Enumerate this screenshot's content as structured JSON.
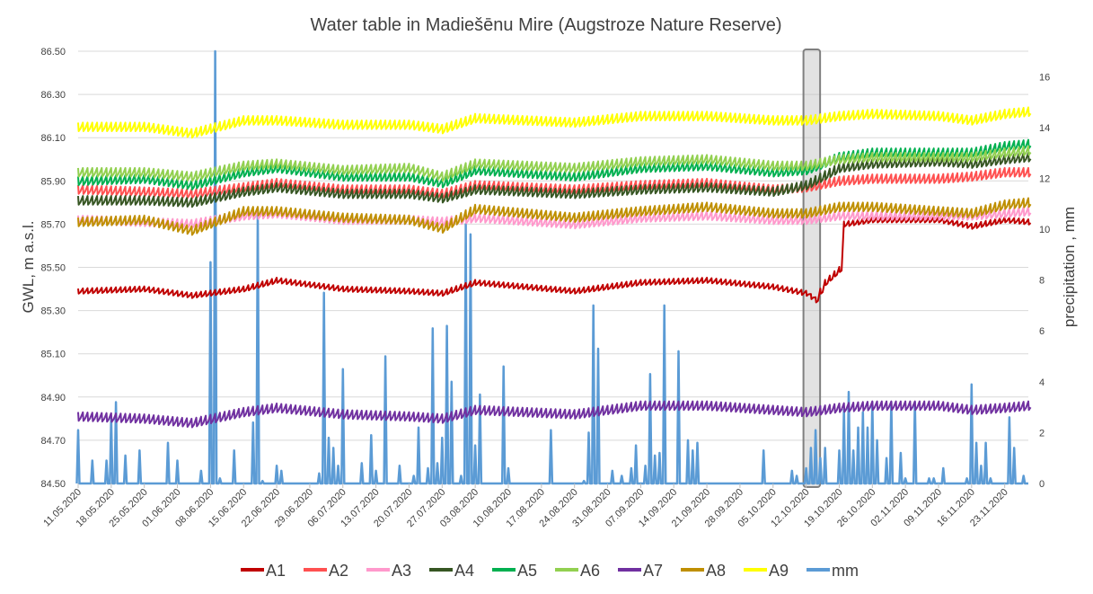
{
  "chart_data": {
    "type": "line",
    "title": "Water table in Madiešēnu Mire (Augstroze Nature Reserve)",
    "ylabel": "GWL, m a.s.l.",
    "y2label": "precipitation , mm",
    "ylim": [
      84.5,
      86.5
    ],
    "y2lim": [
      0,
      17
    ],
    "yticks": [
      "84.50",
      "84.70",
      "84.90",
      "85.10",
      "85.30",
      "85.50",
      "85.70",
      "85.90",
      "86.10",
      "86.30",
      "86.50"
    ],
    "y2ticks": [
      "0",
      "2",
      "4",
      "6",
      "8",
      "10",
      "12",
      "14",
      "16"
    ],
    "x_start": "2020-05-11",
    "x_end": "2020-11-28",
    "xticks": [
      "11.05.2020",
      "18.05.2020",
      "25.05.2020",
      "01.06.2020",
      "08.06.2020",
      "15.06.2020",
      "22.06.2020",
      "29.06.2020",
      "06.07.2020",
      "13.07.2020",
      "20.07.2020",
      "27.07.2020",
      "03.08.2020",
      "10.08.2020",
      "17.08.2020",
      "24.08.2020",
      "31.08.2020",
      "07.09.2020",
      "14.09.2020",
      "21.09.2020",
      "28.09.2020",
      "05.10.2020",
      "12.10.2020",
      "19.10.2020",
      "26.10.2020",
      "02.11.2020",
      "09.11.2020",
      "16.11.2020",
      "23.11.2020"
    ],
    "grid": true,
    "legend_position": "bottom",
    "highlight": {
      "start": "2020-10-12",
      "end": "2020-10-14"
    },
    "series": [
      {
        "name": "A1",
        "color": "#c00000",
        "x": [
          "2020-05-11",
          "2020-05-25",
          "2020-06-04",
          "2020-06-15",
          "2020-06-22",
          "2020-07-06",
          "2020-07-20",
          "2020-07-27",
          "2020-08-03",
          "2020-08-24",
          "2020-09-07",
          "2020-09-21",
          "2020-10-05",
          "2020-10-12",
          "2020-10-14",
          "2020-10-16",
          "2020-10-19",
          "2020-10-20",
          "2020-10-26",
          "2020-11-09",
          "2020-11-16",
          "2020-11-23",
          "2020-11-28"
        ],
        "values": [
          85.39,
          85.4,
          85.37,
          85.4,
          85.44,
          85.4,
          85.39,
          85.38,
          85.43,
          85.39,
          85.43,
          85.44,
          85.41,
          85.38,
          85.35,
          85.43,
          85.49,
          85.7,
          85.72,
          85.72,
          85.69,
          85.72,
          85.71
        ]
      },
      {
        "name": "A2",
        "color": "#ff5050",
        "x": [
          "2020-05-11",
          "2020-05-25",
          "2020-06-04",
          "2020-06-15",
          "2020-06-22",
          "2020-07-06",
          "2020-07-20",
          "2020-07-27",
          "2020-08-03",
          "2020-08-24",
          "2020-09-07",
          "2020-09-21",
          "2020-10-05",
          "2020-10-12",
          "2020-10-19",
          "2020-10-26",
          "2020-11-09",
          "2020-11-16",
          "2020-11-23",
          "2020-11-28"
        ],
        "values": [
          85.86,
          85.85,
          85.84,
          85.87,
          85.89,
          85.86,
          85.86,
          85.84,
          85.88,
          85.86,
          85.88,
          85.89,
          85.86,
          85.87,
          85.9,
          85.91,
          85.91,
          85.92,
          85.94,
          85.94
        ]
      },
      {
        "name": "A3",
        "color": "#ff99cc",
        "x": [
          "2020-05-11",
          "2020-05-25",
          "2020-06-04",
          "2020-06-15",
          "2020-06-22",
          "2020-07-06",
          "2020-07-20",
          "2020-07-27",
          "2020-08-03",
          "2020-08-24",
          "2020-09-07",
          "2020-09-21",
          "2020-10-05",
          "2020-10-12",
          "2020-10-19",
          "2020-10-26",
          "2020-11-09",
          "2020-11-16",
          "2020-11-23",
          "2020-11-28"
        ],
        "values": [
          85.72,
          85.71,
          85.7,
          85.74,
          85.75,
          85.72,
          85.72,
          85.71,
          85.73,
          85.7,
          85.73,
          85.74,
          85.72,
          85.72,
          85.74,
          85.74,
          85.74,
          85.74,
          85.75,
          85.76
        ]
      },
      {
        "name": "A4",
        "color": "#375623",
        "x": [
          "2020-05-11",
          "2020-05-25",
          "2020-06-04",
          "2020-06-15",
          "2020-06-22",
          "2020-07-06",
          "2020-07-20",
          "2020-07-27",
          "2020-08-03",
          "2020-08-24",
          "2020-09-07",
          "2020-09-21",
          "2020-10-05",
          "2020-10-12",
          "2020-10-19",
          "2020-10-26",
          "2020-11-09",
          "2020-11-16",
          "2020-11-23",
          "2020-11-28"
        ],
        "values": [
          85.81,
          85.81,
          85.8,
          85.85,
          85.87,
          85.84,
          85.84,
          85.82,
          85.86,
          85.84,
          85.86,
          85.87,
          85.85,
          85.88,
          85.96,
          85.98,
          85.99,
          85.98,
          86.0,
          86.01
        ]
      },
      {
        "name": "A5",
        "color": "#00b050",
        "x": [
          "2020-05-11",
          "2020-05-25",
          "2020-06-04",
          "2020-06-15",
          "2020-06-22",
          "2020-07-06",
          "2020-07-20",
          "2020-07-27",
          "2020-08-03",
          "2020-08-24",
          "2020-09-07",
          "2020-09-21",
          "2020-10-05",
          "2020-10-12",
          "2020-10-19",
          "2020-10-26",
          "2020-11-09",
          "2020-11-16",
          "2020-11-23",
          "2020-11-28"
        ],
        "values": [
          85.9,
          85.91,
          85.88,
          85.94,
          85.96,
          85.92,
          85.92,
          85.89,
          85.95,
          85.92,
          85.96,
          85.97,
          85.94,
          85.95,
          86.01,
          86.03,
          86.03,
          86.03,
          86.06,
          86.07
        ]
      },
      {
        "name": "A6",
        "color": "#92d050",
        "x": [
          "2020-05-11",
          "2020-05-25",
          "2020-06-04",
          "2020-06-15",
          "2020-06-22",
          "2020-07-06",
          "2020-07-20",
          "2020-07-27",
          "2020-08-03",
          "2020-08-24",
          "2020-09-07",
          "2020-09-21",
          "2020-10-05",
          "2020-10-12",
          "2020-10-19",
          "2020-10-26",
          "2020-11-09",
          "2020-11-16",
          "2020-11-23",
          "2020-11-28"
        ],
        "values": [
          85.94,
          85.94,
          85.92,
          85.97,
          85.98,
          85.95,
          85.96,
          85.92,
          85.98,
          85.96,
          85.99,
          86.0,
          85.97,
          85.97,
          86.0,
          86.01,
          86.01,
          86.01,
          86.03,
          86.04
        ]
      },
      {
        "name": "A7",
        "color": "#7030a0",
        "x": [
          "2020-05-11",
          "2020-05-25",
          "2020-06-04",
          "2020-06-15",
          "2020-06-22",
          "2020-07-06",
          "2020-07-20",
          "2020-07-27",
          "2020-08-03",
          "2020-08-24",
          "2020-09-07",
          "2020-09-21",
          "2020-10-05",
          "2020-10-12",
          "2020-10-19",
          "2020-10-26",
          "2020-11-09",
          "2020-11-16",
          "2020-11-23",
          "2020-11-28"
        ],
        "values": [
          84.81,
          84.8,
          84.78,
          84.83,
          84.85,
          84.82,
          84.81,
          84.8,
          84.84,
          84.82,
          84.86,
          84.86,
          84.84,
          84.83,
          84.85,
          84.86,
          84.86,
          84.84,
          84.85,
          84.86
        ]
      },
      {
        "name": "A8",
        "color": "#bf8f00",
        "x": [
          "2020-05-11",
          "2020-05-25",
          "2020-06-04",
          "2020-06-15",
          "2020-06-22",
          "2020-07-06",
          "2020-07-20",
          "2020-07-27",
          "2020-08-03",
          "2020-08-24",
          "2020-09-07",
          "2020-09-21",
          "2020-10-05",
          "2020-10-12",
          "2020-10-19",
          "2020-10-26",
          "2020-11-09",
          "2020-11-16",
          "2020-11-23",
          "2020-11-28"
        ],
        "values": [
          85.71,
          85.72,
          85.67,
          85.76,
          85.76,
          85.73,
          85.72,
          85.68,
          85.77,
          85.73,
          85.76,
          85.78,
          85.75,
          85.75,
          85.78,
          85.78,
          85.76,
          85.75,
          85.79,
          85.8
        ]
      },
      {
        "name": "A9",
        "color": "#ffff00",
        "x": [
          "2020-05-11",
          "2020-05-25",
          "2020-06-04",
          "2020-06-15",
          "2020-06-22",
          "2020-07-06",
          "2020-07-20",
          "2020-07-27",
          "2020-08-03",
          "2020-08-24",
          "2020-09-07",
          "2020-09-21",
          "2020-10-05",
          "2020-10-12",
          "2020-10-19",
          "2020-10-26",
          "2020-11-09",
          "2020-11-16",
          "2020-11-23",
          "2020-11-28"
        ],
        "values": [
          86.15,
          86.15,
          86.12,
          86.18,
          86.18,
          86.16,
          86.16,
          86.14,
          86.19,
          86.17,
          86.2,
          86.2,
          86.18,
          86.18,
          86.2,
          86.21,
          86.2,
          86.18,
          86.21,
          86.22
        ]
      }
    ],
    "precipitation": {
      "name": "mm",
      "color": "#5b9bd5",
      "axis": "right",
      "x": [
        "2020-05-11",
        "2020-05-14",
        "2020-05-17",
        "2020-05-18",
        "2020-05-19",
        "2020-05-21",
        "2020-05-24",
        "2020-05-30",
        "2020-06-01",
        "2020-06-06",
        "2020-06-08",
        "2020-06-09",
        "2020-06-10",
        "2020-06-13",
        "2020-06-17",
        "2020-06-18",
        "2020-06-19",
        "2020-06-22",
        "2020-06-23",
        "2020-07-01",
        "2020-07-02",
        "2020-07-03",
        "2020-07-04",
        "2020-07-05",
        "2020-07-06",
        "2020-07-10",
        "2020-07-12",
        "2020-07-13",
        "2020-07-15",
        "2020-07-18",
        "2020-07-21",
        "2020-07-22",
        "2020-07-24",
        "2020-07-25",
        "2020-07-26",
        "2020-07-27",
        "2020-07-28",
        "2020-07-29",
        "2020-07-31",
        "2020-08-01",
        "2020-08-02",
        "2020-08-03",
        "2020-08-04",
        "2020-08-09",
        "2020-08-10",
        "2020-08-19",
        "2020-08-26",
        "2020-08-27",
        "2020-08-28",
        "2020-08-29",
        "2020-09-01",
        "2020-09-03",
        "2020-09-05",
        "2020-09-06",
        "2020-09-08",
        "2020-09-09",
        "2020-09-10",
        "2020-09-11",
        "2020-09-12",
        "2020-09-15",
        "2020-09-17",
        "2020-09-18",
        "2020-09-19",
        "2020-10-03",
        "2020-10-09",
        "2020-10-10",
        "2020-10-12",
        "2020-10-13",
        "2020-10-14",
        "2020-10-15",
        "2020-10-16",
        "2020-10-19",
        "2020-10-20",
        "2020-10-21",
        "2020-10-22",
        "2020-10-23",
        "2020-10-24",
        "2020-10-25",
        "2020-10-26",
        "2020-10-27",
        "2020-10-29",
        "2020-10-30",
        "2020-11-01",
        "2020-11-02",
        "2020-11-04",
        "2020-11-07",
        "2020-11-08",
        "2020-11-10",
        "2020-11-15",
        "2020-11-16",
        "2020-11-17",
        "2020-11-18",
        "2020-11-19",
        "2020-11-20",
        "2020-11-24",
        "2020-11-25",
        "2020-11-27"
      ],
      "values": [
        2.1,
        0.9,
        0.9,
        2.6,
        3.2,
        1.1,
        1.3,
        1.6,
        0.9,
        0.5,
        8.7,
        17.0,
        0.2,
        1.3,
        2.4,
        10.8,
        0.1,
        0.7,
        0.5,
        0.4,
        7.5,
        1.8,
        1.4,
        0.7,
        4.5,
        0.8,
        1.9,
        0.5,
        5.0,
        0.7,
        0.3,
        2.2,
        0.6,
        6.1,
        0.8,
        1.8,
        6.2,
        4.0,
        0.3,
        10.2,
        9.8,
        1.5,
        3.5,
        4.6,
        0.6,
        2.1,
        0.1,
        2.0,
        7.0,
        5.3,
        0.5,
        0.3,
        0.6,
        1.5,
        0.7,
        4.3,
        1.1,
        1.2,
        7.0,
        5.2,
        1.7,
        1.3,
        1.6,
        1.3,
        0.5,
        0.3,
        0.6,
        1.4,
        2.1,
        1.0,
        1.4,
        1.3,
        2.9,
        3.6,
        1.3,
        2.2,
        2.8,
        2.2,
        3.2,
        1.7,
        1.0,
        3.2,
        1.2,
        0.2,
        3.2,
        0.2,
        0.2,
        0.6,
        0.2,
        3.9,
        1.6,
        0.7,
        1.6,
        0.2,
        2.6,
        1.4,
        0.3
      ]
    }
  }
}
